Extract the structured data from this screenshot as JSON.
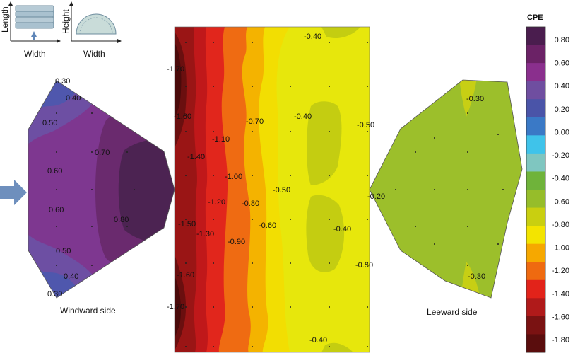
{
  "legend": {
    "title": "CPE",
    "ticks": [
      "0.80",
      "0.60",
      "0.40",
      "0.20",
      "0.00",
      "-0.20",
      "-0.40",
      "-0.60",
      "-0.80",
      "-1.00",
      "-1.20",
      "-1.40",
      "-1.60",
      "-1.80"
    ],
    "colors": [
      "#4a1d4e",
      "#6b2266",
      "#8a2f8d",
      "#6f4ea0",
      "#4a54a8",
      "#3a79c6",
      "#3fc3ea",
      "#7fc6c0",
      "#6fb33a",
      "#96bd2a",
      "#c9cf10",
      "#f3e400",
      "#f6a800",
      "#ef6a10",
      "#e2231a",
      "#b01a1a",
      "#7a1212",
      "#5a0d0d"
    ]
  },
  "inset": {
    "left_ylabel": "Length",
    "left_xlabel": "Width",
    "right_ylabel": "Height",
    "right_xlabel": "Width"
  },
  "windward": {
    "caption": "Windward side",
    "labels": [
      "0.30",
      "0.40",
      "0.50",
      "0.70",
      "0.60",
      "0.60",
      "0.80",
      "0.50",
      "0.40",
      "0.30"
    ]
  },
  "roof": {
    "labels": [
      "-0.40",
      "-1.70",
      "-1.60",
      "-1.10",
      "-0.70",
      "-0.40",
      "-0.50",
      "-1.40",
      "-1.00",
      "-0.50",
      "-1.20",
      "-0.80",
      "-1.50",
      "-1.30",
      "-0.60",
      "-0.90",
      "-0.40",
      "-0.50",
      "-1.60",
      "-1.70",
      "-0.40"
    ]
  },
  "leeward": {
    "caption": "Leeward side",
    "labels": [
      "-0.30",
      "-0.20",
      "-0.30"
    ]
  }
}
